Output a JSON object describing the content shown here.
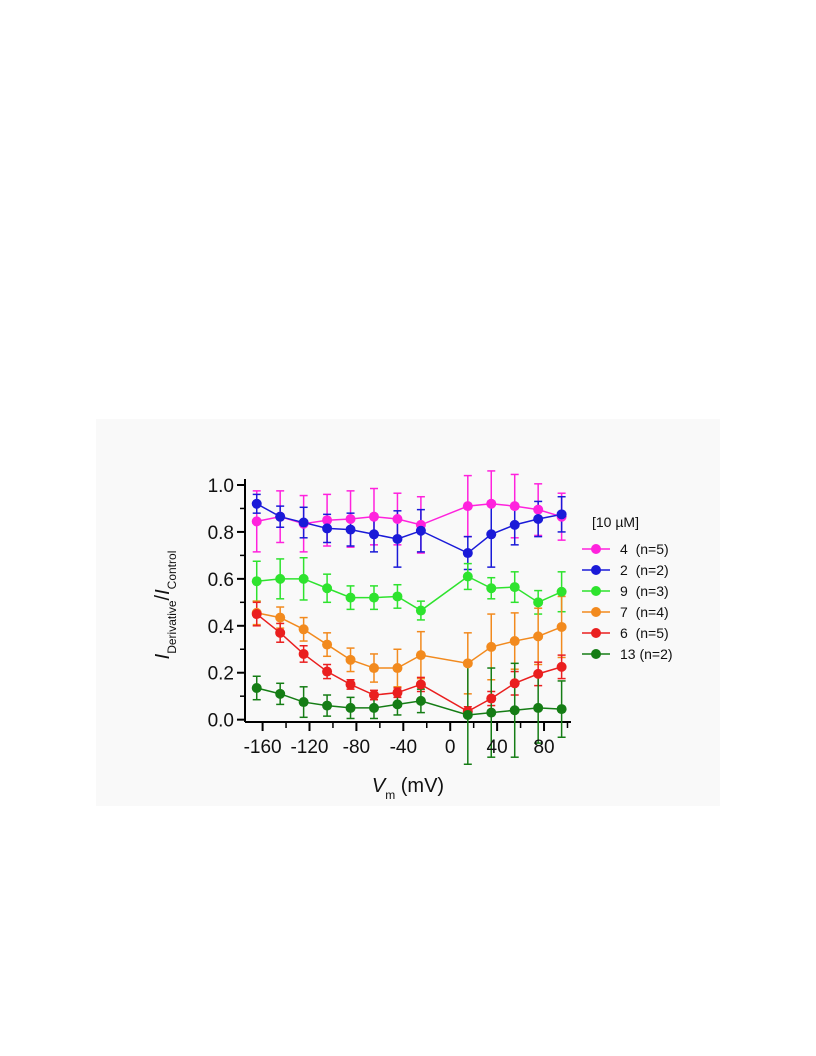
{
  "chart_data": {
    "type": "line",
    "title": "",
    "xlabel": {
      "main": "V",
      "sub": "m",
      "unit": " (mV)"
    },
    "ylabel": {
      "num_main": "I",
      "num_sub": "Derivative",
      "sep": "/",
      "den_main": "I",
      "den_sub": "Control"
    },
    "xlim": [
      -175,
      103
    ],
    "ylim": [
      -0.01,
      1.0
    ],
    "xticks": [
      -160,
      -120,
      -80,
      -40,
      0,
      40,
      80
    ],
    "xtick_labels": [
      "-160",
      "-120",
      "-80",
      "-40",
      "0",
      "40",
      "80"
    ],
    "yticks": [
      0.0,
      0.2,
      0.4,
      0.6,
      0.8,
      1.0
    ],
    "ytick_labels": [
      "0.0",
      "0.2",
      "0.4",
      "0.6",
      "0.8",
      "1.0"
    ],
    "grid": false,
    "legend": {
      "position": "right",
      "title": "[10 µM]"
    },
    "x": [
      -165,
      -145,
      -125,
      -105,
      -85,
      -65,
      -45,
      -25,
      15,
      35,
      55,
      75,
      95
    ],
    "series": [
      {
        "name": "4  (n=5)",
        "color": "#ff22dd",
        "values": [
          0.845,
          0.865,
          0.835,
          0.85,
          0.855,
          0.865,
          0.855,
          0.83,
          0.91,
          0.92,
          0.91,
          0.895,
          0.865
        ],
        "errors": [
          0.13,
          0.11,
          0.12,
          0.11,
          0.12,
          0.12,
          0.11,
          0.12,
          0.13,
          0.14,
          0.135,
          0.11,
          0.1
        ]
      },
      {
        "name": "2  (n=2)",
        "color": "#1a1ad8",
        "values": [
          0.92,
          0.865,
          0.84,
          0.815,
          0.81,
          0.79,
          0.77,
          0.805,
          0.71,
          0.79,
          0.83,
          0.855,
          0.875
        ],
        "errors": [
          0.04,
          0.045,
          0.065,
          0.06,
          0.07,
          0.075,
          0.12,
          0.09,
          0.07,
          0.14,
          0.085,
          0.075,
          0.075
        ]
      },
      {
        "name": "9  (n=3)",
        "color": "#2ee32e",
        "values": [
          0.59,
          0.6,
          0.6,
          0.56,
          0.52,
          0.52,
          0.525,
          0.465,
          0.61,
          0.56,
          0.565,
          0.5,
          0.545
        ],
        "errors": [
          0.085,
          0.085,
          0.09,
          0.06,
          0.05,
          0.05,
          0.05,
          0.04,
          0.055,
          0.045,
          0.065,
          0.05,
          0.085
        ]
      },
      {
        "name": "7  (n=4)",
        "color": "#f28a1e",
        "values": [
          0.455,
          0.435,
          0.385,
          0.32,
          0.255,
          0.22,
          0.22,
          0.275,
          0.24,
          0.31,
          0.335,
          0.355,
          0.395
        ],
        "errors": [
          0.05,
          0.045,
          0.05,
          0.05,
          0.05,
          0.06,
          0.08,
          0.1,
          0.13,
          0.14,
          0.12,
          0.12,
          0.13
        ]
      },
      {
        "name": "6  (n=5)",
        "color": "#ea1f1f",
        "values": [
          0.45,
          0.37,
          0.28,
          0.205,
          0.15,
          0.105,
          0.115,
          0.15,
          0.035,
          0.09,
          0.155,
          0.195,
          0.225
        ],
        "errors": [
          0.05,
          0.04,
          0.035,
          0.03,
          0.02,
          0.02,
          0.02,
          0.03,
          0.02,
          0.03,
          0.05,
          0.05,
          0.05
        ]
      },
      {
        "name": "13 (n=2)",
        "color": "#157d15",
        "values": [
          0.135,
          0.11,
          0.075,
          0.06,
          0.05,
          0.05,
          0.065,
          0.08,
          0.02,
          0.03,
          0.04,
          0.05,
          0.045
        ],
        "errors": [
          0.05,
          0.045,
          0.065,
          0.045,
          0.045,
          0.045,
          0.045,
          0.05,
          0.21,
          0.19,
          0.2,
          0.15,
          0.12
        ]
      }
    ]
  }
}
